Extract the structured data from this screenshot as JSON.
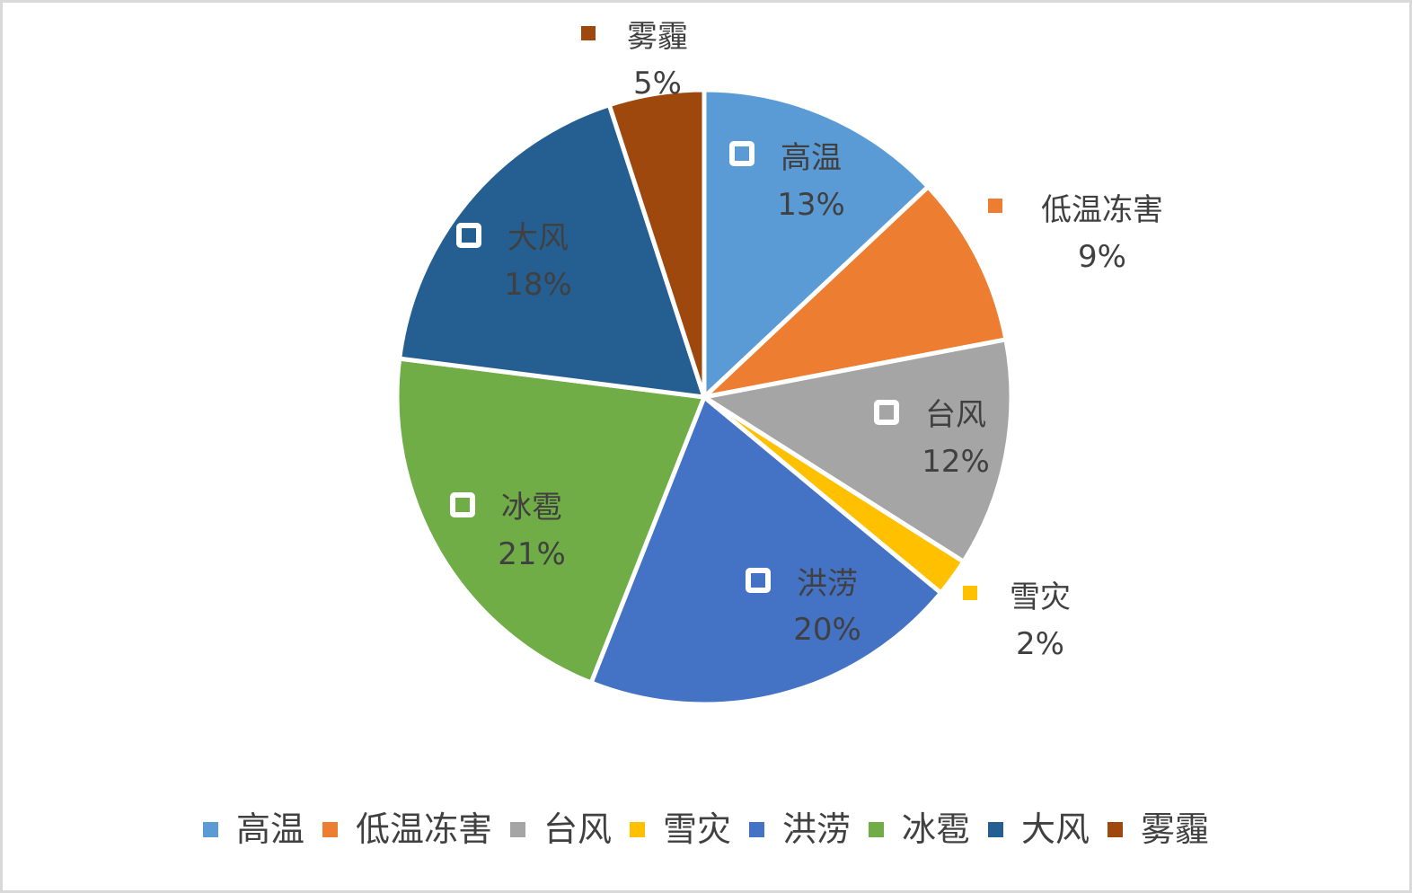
{
  "chart_data": {
    "type": "pie",
    "title": "",
    "categories": [
      "高温",
      "低温冻害",
      "台风",
      "雪灾",
      "洪涝",
      "冰雹",
      "大风",
      "雾霾"
    ],
    "values": [
      13,
      9,
      12,
      2,
      20,
      21,
      18,
      5
    ],
    "unit": "%",
    "colors": [
      "#5b9bd5",
      "#ed7d31",
      "#a5a5a5",
      "#ffc000",
      "#4472c4",
      "#70ad47",
      "#255e91",
      "#9e480e"
    ],
    "start_angle_deg": 0,
    "direction": "clockwise",
    "legend_position": "bottom",
    "data_labels": [
      {
        "name": "高温",
        "pct": "13%",
        "position": "inside"
      },
      {
        "name": "低温冻害",
        "pct": "9%",
        "position": "outside"
      },
      {
        "name": "台风",
        "pct": "12%",
        "position": "inside"
      },
      {
        "name": "雪灾",
        "pct": "2%",
        "position": "outside"
      },
      {
        "name": "洪涝",
        "pct": "20%",
        "position": "inside"
      },
      {
        "name": "冰雹",
        "pct": "21%",
        "position": "inside"
      },
      {
        "name": "大风",
        "pct": "18%",
        "position": "inside"
      },
      {
        "name": "雾霾",
        "pct": "5%",
        "position": "outside"
      }
    ]
  },
  "legend": {
    "items": [
      {
        "label": "高温",
        "color": "#5b9bd5"
      },
      {
        "label": "低温冻害",
        "color": "#ed7d31"
      },
      {
        "label": "台风",
        "color": "#a5a5a5"
      },
      {
        "label": "雪灾",
        "color": "#ffc000"
      },
      {
        "label": "洪涝",
        "color": "#4472c4"
      },
      {
        "label": "冰雹",
        "color": "#70ad47"
      },
      {
        "label": "大风",
        "color": "#255e91"
      },
      {
        "label": "雾霾",
        "color": "#9e480e"
      }
    ]
  }
}
